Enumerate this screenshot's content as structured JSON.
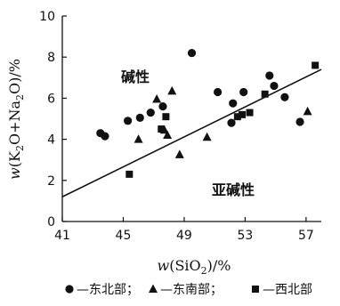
{
  "chart_data": {
    "type": "scatter",
    "xlabel": "w(SiO₂)/%",
    "ylabel": "w(K₂O+Na₂O)/%",
    "xlim": [
      41,
      58
    ],
    "ylim": [
      0,
      10
    ],
    "xticks": [
      41,
      45,
      49,
      53,
      57
    ],
    "yticks": [
      0,
      2,
      4,
      6,
      8,
      10
    ],
    "grid": false,
    "legend_position": "bottom",
    "region_labels": {
      "alkaline": "碱性",
      "subalkaline": "亚碱性"
    },
    "boundary_line": {
      "x": [
        41,
        58
      ],
      "y": [
        1.2,
        7.4
      ]
    },
    "series": [
      {
        "name": "东北部",
        "marker": "circle",
        "x": [
          43.5,
          43.8,
          45.3,
          46.1,
          46.8,
          47.6,
          49.5,
          51.2,
          52.2,
          52.1,
          52.9,
          54.6,
          54.9,
          55.6,
          56.6
        ],
        "y": [
          4.3,
          4.15,
          4.9,
          5.05,
          5.3,
          5.6,
          8.2,
          6.3,
          5.75,
          4.8,
          6.3,
          7.1,
          6.6,
          6.05,
          4.85
        ]
      },
      {
        "name": "东南部",
        "marker": "triangle",
        "x": [
          46.0,
          47.2,
          47.7,
          47.9,
          48.2,
          48.7,
          50.5,
          57.1
        ],
        "y": [
          4.0,
          5.95,
          4.45,
          4.2,
          6.35,
          3.25,
          4.1,
          5.35
        ]
      },
      {
        "name": "西北部",
        "marker": "square",
        "x": [
          45.4,
          47.5,
          47.8,
          52.5,
          52.8,
          53.3,
          54.3,
          57.6
        ],
        "y": [
          2.3,
          4.5,
          5.1,
          5.1,
          5.2,
          5.3,
          6.2,
          7.6
        ]
      }
    ],
    "legend_separator": "—",
    "legend_delimiter": "；"
  }
}
